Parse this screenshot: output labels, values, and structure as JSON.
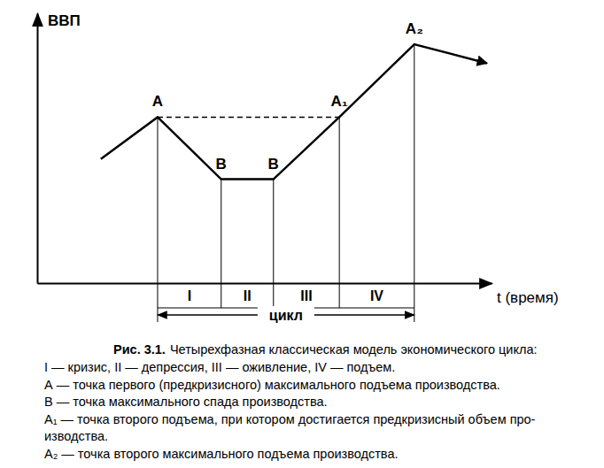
{
  "chart_data": {
    "type": "line",
    "y_label": "ВВП",
    "x_label": "t (время)",
    "xlim": [
      0,
      100
    ],
    "ylim": [
      0,
      100
    ],
    "xticks": [],
    "yticks": [],
    "tick_labels": false,
    "grid": false,
    "color": "#000000",
    "x": [
      14,
      26.5,
      40.5,
      52,
      66.5,
      83,
      99
    ],
    "values": [
      46,
      61.5,
      38.5,
      38.5,
      61.5,
      88.5,
      81.5
    ],
    "point_labels": [
      null,
      "А",
      "В",
      "В",
      "А₁",
      "А₂",
      null
    ],
    "reference": {
      "x": [
        26.5,
        66.5
      ],
      "values": [
        61.5,
        61.5
      ],
      "line_style": "dashed"
    },
    "phases": {
      "labels": [
        "I",
        "II",
        "III",
        "IV"
      ],
      "bounds": [
        26.5,
        40.5,
        52,
        66.5,
        83
      ]
    },
    "cycle": {
      "label": "цикл",
      "x": [
        26.5,
        83
      ]
    },
    "caption_label": "Рис. 3.1.",
    "title": "Четырехфазная классическая модель экономического цикла:",
    "notes": [
      "I — кризис, II — депрессия, III — оживление, IV — подъем.",
      "А — точка первого (предкризисного) максимального подъема производства.",
      "В — точка максимального спада производства.",
      "А₁ — точка второго подъема, при котором достигается предкризисный объем про-",
      "изводства.",
      "А₂ — точка второго максимального подъема производства."
    ]
  }
}
